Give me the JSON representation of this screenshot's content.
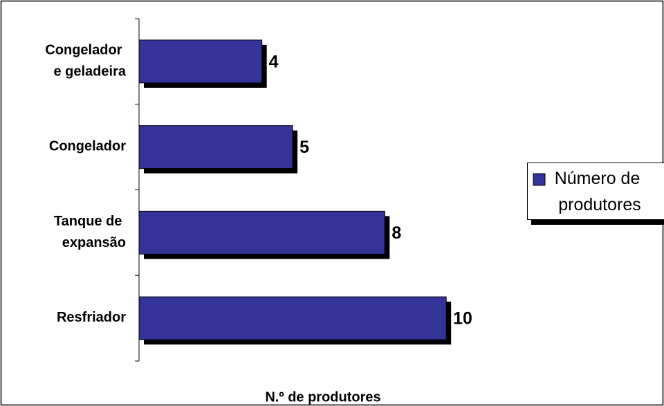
{
  "chart_data": {
    "type": "bar",
    "orientation": "horizontal",
    "categories": [
      "Congelador e geladeira",
      "Congelador",
      "Tanque de expansão",
      "Resfriador"
    ],
    "series": [
      {
        "name": "Número de produtores",
        "color": "#333399",
        "values": [
          4,
          5,
          8,
          10
        ]
      }
    ],
    "x_label": "N.º de produtores",
    "xlim": [
      0,
      12
    ]
  }
}
